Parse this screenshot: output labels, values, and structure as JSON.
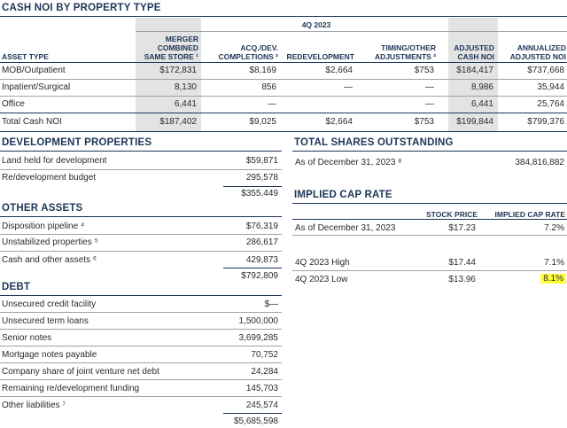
{
  "noi": {
    "title": "CASH NOI BY PROPERTY TYPE",
    "period": "4Q 2023",
    "headers": {
      "asset_type": "ASSET TYPE",
      "merger": [
        "MERGER",
        "COMBINED",
        "SAME STORE ¹"
      ],
      "acq": [
        "ACQ./DEV.",
        "COMPLETIONS ²"
      ],
      "redev": "REDEVELOPMENT",
      "timing": [
        "TIMING/OTHER",
        "ADJUSTMENTS ³"
      ],
      "adjusted": [
        "ADJUSTED",
        "CASH NOI"
      ],
      "annualized": [
        "ANNUALIZED",
        "ADJUSTED NOI"
      ]
    },
    "rows": [
      {
        "label": "MOB/Outpatient",
        "merger": "$172,831",
        "acq": "$8,169",
        "redev": "$2,664",
        "timing": "$753",
        "adjusted": "$184,417",
        "annualized": "$737,668"
      },
      {
        "label": "Inpatient/Surgical",
        "merger": "8,130",
        "acq": "856",
        "redev": "—",
        "timing": "—",
        "adjusted": "8,986",
        "annualized": "35,944"
      },
      {
        "label": "Office",
        "merger": "6,441",
        "acq": "—",
        "redev": "",
        "timing": "—",
        "adjusted": "6,441",
        "annualized": "25,764"
      }
    ],
    "total": {
      "label": "Total Cash NOI",
      "merger": "$187,402",
      "acq": "$9,025",
      "redev": "$2,664",
      "timing": "$753",
      "adjusted": "$199,844",
      "annualized": "$799,376"
    }
  },
  "development": {
    "title": "DEVELOPMENT PROPERTIES",
    "rows": [
      {
        "label": "Land held for development",
        "value": "$59,871"
      },
      {
        "label": "Re/development budget",
        "value": "295,578"
      }
    ],
    "total": "$355,449"
  },
  "other_assets": {
    "title": "OTHER ASSETS",
    "rows": [
      {
        "label": "Disposition pipeline ⁴",
        "value": "$76,319"
      },
      {
        "label": "Unstabilized properties ⁵",
        "value": "286,617"
      },
      {
        "label": "Cash and other assets ⁶",
        "value": "429,873"
      }
    ],
    "total": "$792,809"
  },
  "debt": {
    "title": "DEBT",
    "rows": [
      {
        "label": "Unsecured credit facility",
        "value": "$—"
      },
      {
        "label": "Unsecured term loans",
        "value": "1,500,000"
      },
      {
        "label": "Senior notes",
        "value": "3,699,285"
      },
      {
        "label": "Mortgage notes payable",
        "value": "70,752"
      },
      {
        "label": "Company share of joint venture net debt",
        "value": "24,284"
      },
      {
        "label": "Remaining re/development funding",
        "value": "145,703"
      },
      {
        "label": "Other liabilities ⁷",
        "value": "245,574"
      }
    ],
    "total": "$5,685,598"
  },
  "shares": {
    "title": "TOTAL SHARES OUTSTANDING",
    "label": "As of December 31, 2023 ⁸",
    "value": "384,816,882"
  },
  "cap_rate": {
    "title": "IMPLIED CAP RATE",
    "col_price": "STOCK PRICE",
    "col_rate": "IMPLIED CAP RATE",
    "rows": [
      {
        "label": "As of December 31, 2023",
        "price": "$17.23",
        "rate": "7.2%"
      },
      {
        "label": "4Q 2023 High",
        "price": "$17.44",
        "rate": "7.1%"
      },
      {
        "label": "4Q 2023 Low",
        "price": "$13.96",
        "rate": "8.1%"
      }
    ],
    "highlight_color": "#ffff3b"
  }
}
